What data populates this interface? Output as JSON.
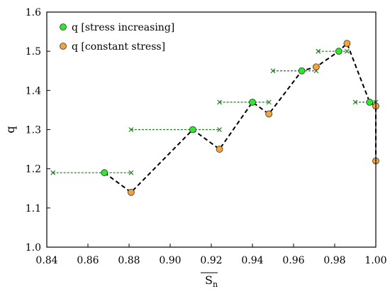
{
  "chart_data": {
    "type": "scatter",
    "title": "",
    "xlabel": "S",
    "xlabel_subscript": "n",
    "ylabel": "q",
    "xlim": [
      0.84,
      1.0
    ],
    "ylim": [
      1.0,
      1.6
    ],
    "xticks": [
      "0.84",
      "0.86",
      "0.88",
      "0.90",
      "0.92",
      "0.94",
      "0.96",
      "0.98",
      "1.00"
    ],
    "yticks": [
      "1.0",
      "1.1",
      "1.2",
      "1.3",
      "1.4",
      "1.5",
      "1.6"
    ],
    "grid": false,
    "legend_position": "top-left",
    "series": [
      {
        "name": "q [stress increasing]",
        "marker": "circle",
        "color": "#2ee62e",
        "points": [
          {
            "x": 0.868,
            "y": 1.19
          },
          {
            "x": 0.911,
            "y": 1.3
          },
          {
            "x": 0.94,
            "y": 1.37
          },
          {
            "x": 0.964,
            "y": 1.45
          },
          {
            "x": 0.982,
            "y": 1.5
          },
          {
            "x": 0.997,
            "y": 1.37
          }
        ]
      },
      {
        "name": "q [constant stress]",
        "marker": "circle",
        "color": "#f5a23a",
        "points": [
          {
            "x": 0.881,
            "y": 1.14
          },
          {
            "x": 0.924,
            "y": 1.25
          },
          {
            "x": 0.948,
            "y": 1.34
          },
          {
            "x": 0.971,
            "y": 1.46
          },
          {
            "x": 0.986,
            "y": 1.52
          },
          {
            "x": 1.0,
            "y": 1.36
          },
          {
            "x": 1.0,
            "y": 1.22
          }
        ]
      }
    ],
    "ranges": {
      "color": "#1a7a1a",
      "marker": "x",
      "items": [
        {
          "y": 1.19,
          "x_start": 0.843,
          "x_end": 0.881
        },
        {
          "y": 1.3,
          "x_start": 0.881,
          "x_end": 0.924
        },
        {
          "y": 1.37,
          "x_start": 0.924,
          "x_end": 0.948
        },
        {
          "y": 1.45,
          "x_start": 0.95,
          "x_end": 0.971
        },
        {
          "y": 1.5,
          "x_start": 0.972,
          "x_end": 0.986
        },
        {
          "y": 1.37,
          "x_start": 0.99,
          "x_end": 1.0
        }
      ]
    },
    "path": {
      "color": "#000000",
      "style": "dashed",
      "points": [
        {
          "x": 0.868,
          "y": 1.19
        },
        {
          "x": 0.881,
          "y": 1.14
        },
        {
          "x": 0.911,
          "y": 1.3
        },
        {
          "x": 0.924,
          "y": 1.25
        },
        {
          "x": 0.94,
          "y": 1.37
        },
        {
          "x": 0.948,
          "y": 1.34
        },
        {
          "x": 0.964,
          "y": 1.45
        },
        {
          "x": 0.971,
          "y": 1.46
        },
        {
          "x": 0.982,
          "y": 1.5
        },
        {
          "x": 0.986,
          "y": 1.52
        },
        {
          "x": 0.997,
          "y": 1.37
        },
        {
          "x": 1.0,
          "y": 1.36
        },
        {
          "x": 1.0,
          "y": 1.22
        }
      ]
    }
  }
}
